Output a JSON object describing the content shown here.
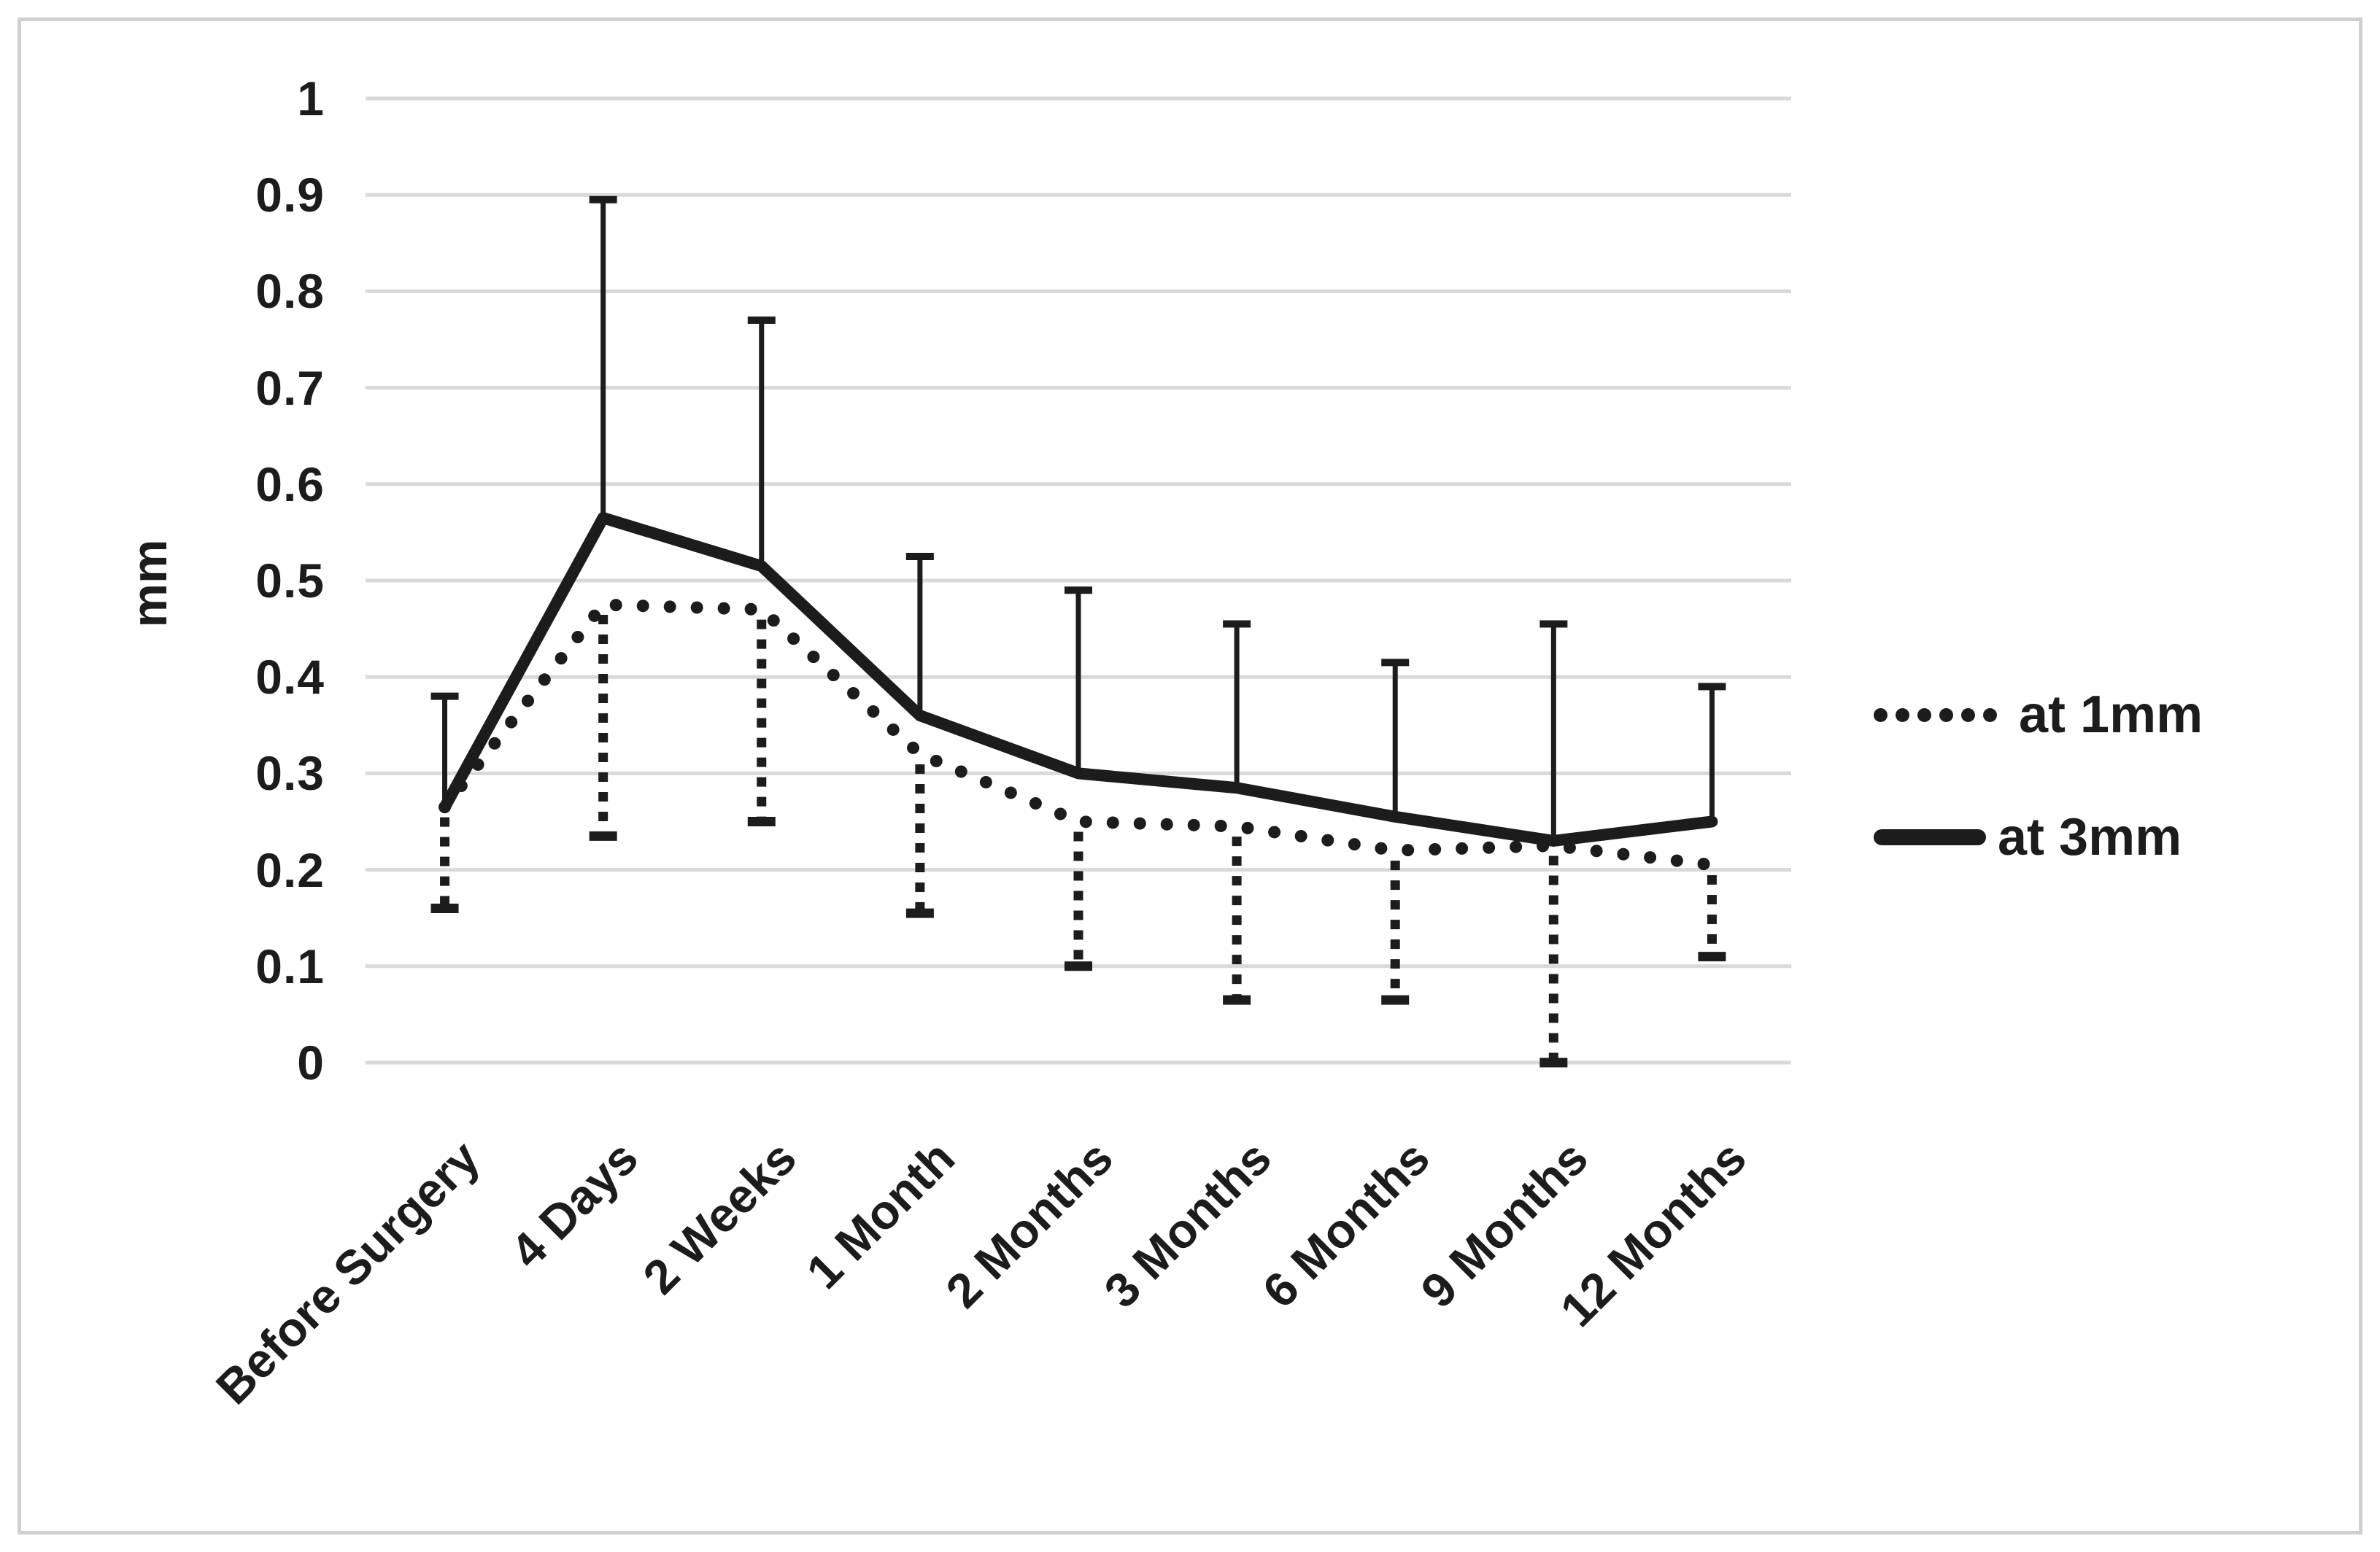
{
  "chart_data": {
    "type": "line",
    "title": "",
    "xlabel": "",
    "ylabel": "mm",
    "ylim": [
      0,
      1
    ],
    "ytick_step": 0.1,
    "ytick_labels": [
      "0",
      "0.1",
      "0.2",
      "0.3",
      "0.4",
      "0.5",
      "0.6",
      "0.7",
      "0.8",
      "0.9",
      "1"
    ],
    "grid": true,
    "legend_position": "right-middle",
    "categories": [
      "Before Surgery",
      "4 Days",
      "2 Weeks",
      "1 Month",
      "2 Months",
      "3 Months",
      "6 Months",
      "9 Months",
      "12 Months"
    ],
    "series": [
      {
        "name": "at 1mm",
        "line_style": "dotted",
        "error_direction": "down",
        "error_style": "dotted",
        "values": [
          0.265,
          0.475,
          0.47,
          0.32,
          0.25,
          0.245,
          0.22,
          0.225,
          0.205
        ],
        "error_to": [
          0.16,
          0.235,
          0.25,
          0.155,
          0.1,
          0.065,
          0.065,
          0.0,
          0.11
        ]
      },
      {
        "name": "at 3mm",
        "line_style": "solid",
        "error_direction": "up",
        "error_style": "solid",
        "values": [
          0.265,
          0.565,
          0.515,
          0.36,
          0.3,
          0.285,
          0.255,
          0.23,
          0.25
        ],
        "error_to": [
          0.38,
          0.895,
          0.77,
          0.525,
          0.49,
          0.455,
          0.415,
          0.455,
          0.39
        ]
      }
    ]
  },
  "colors": {
    "line": "#1c1c1c",
    "grid": "#d9d9d9",
    "frame": "#cfcfcf",
    "text": "#1c1c1c",
    "background": "#ffffff"
  }
}
